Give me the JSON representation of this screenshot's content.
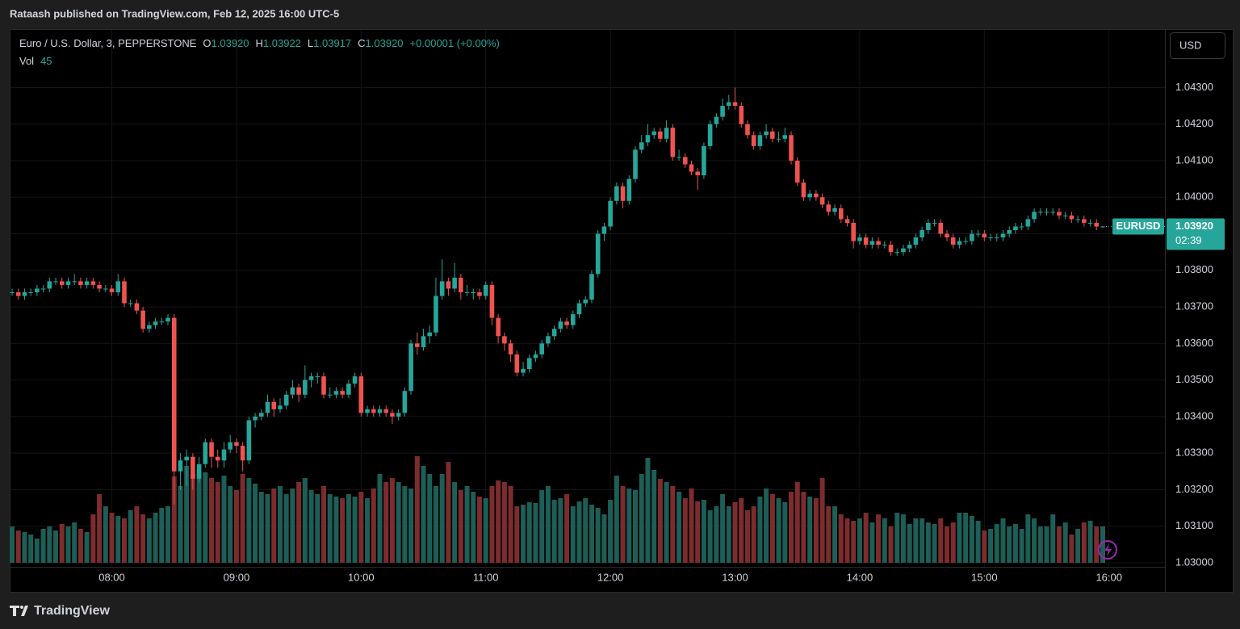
{
  "page": {
    "published": "Rataash published on TradingView.com, Feb 12, 2025 16:00 UTC-5",
    "brand": "TradingView",
    "currency": "USD",
    "header": {
      "symbol": "Euro / U.S. Dollar, 3, PEPPERSTONE",
      "ohlc": [
        {
          "key": "O",
          "value": "1.03920"
        },
        {
          "key": "H",
          "value": "1.03922"
        },
        {
          "key": "L",
          "value": "1.03917"
        },
        {
          "key": "C",
          "value": "1.03920"
        }
      ],
      "change": "+0.00001 (+0.00%)",
      "vol_label": "Vol"
    },
    "price_label": {
      "ticker": "EURUSD",
      "price": "1.03920",
      "countdown": "02:39"
    }
  },
  "chart_data": {
    "type": "candlestick",
    "up_color": "#26a69a",
    "down_color": "#ef5350",
    "volume_up_color": "#1d5e57",
    "volume_down_color": "#7d2c2e",
    "grid": true,
    "ylim": [
      1.03,
      1.0446
    ],
    "yticks": [
      {
        "value": 1.03,
        "label": "1.03000"
      },
      {
        "value": 1.031,
        "label": "1.03100"
      },
      {
        "value": 1.032,
        "label": "1.03200"
      },
      {
        "value": 1.033,
        "label": "1.03300"
      },
      {
        "value": 1.034,
        "label": "1.03400"
      },
      {
        "value": 1.035,
        "label": "1.03500"
      },
      {
        "value": 1.036,
        "label": "1.03600"
      },
      {
        "value": 1.037,
        "label": "1.03700"
      },
      {
        "value": 1.038,
        "label": "1.03800"
      },
      {
        "value": 1.039,
        "label": "1.03900"
      },
      {
        "value": 1.04,
        "label": "1.04000"
      },
      {
        "value": 1.041,
        "label": "1.04100"
      },
      {
        "value": 1.042,
        "label": "1.04200"
      },
      {
        "value": 1.043,
        "label": "1.04300"
      }
    ],
    "time_labels": [
      "08:00",
      "09:00",
      "10:00",
      "11:00",
      "12:00",
      "13:00",
      "14:00",
      "15:00",
      "16:00"
    ],
    "candles": [
      [
        1.0374,
        1.0375,
        1.0373,
        1.0374
      ],
      [
        1.0374,
        1.0375,
        1.0372,
        1.0373
      ],
      [
        1.0373,
        1.0375,
        1.0372,
        1.0374
      ],
      [
        1.0374,
        1.0375,
        1.0373,
        1.0374
      ],
      [
        1.0374,
        1.0376,
        1.0373,
        1.0375
      ],
      [
        1.0375,
        1.0376,
        1.0374,
        1.0375
      ],
      [
        1.0375,
        1.0378,
        1.0374,
        1.0377
      ],
      [
        1.0377,
        1.0378,
        1.0376,
        1.0377
      ],
      [
        1.0377,
        1.0378,
        1.0375,
        1.0376
      ],
      [
        1.0376,
        1.0378,
        1.0375,
        1.0377
      ],
      [
        1.0377,
        1.0379,
        1.0376,
        1.0377
      ],
      [
        1.0377,
        1.0378,
        1.0375,
        1.0376
      ],
      [
        1.0376,
        1.0378,
        1.0375,
        1.0377
      ],
      [
        1.0377,
        1.0378,
        1.0375,
        1.0376
      ],
      [
        1.0376,
        1.0377,
        1.0374,
        1.0375
      ],
      [
        1.0375,
        1.0376,
        1.0374,
        1.0375
      ],
      [
        1.0375,
        1.0376,
        1.0373,
        1.0374
      ],
      [
        1.0374,
        1.0379,
        1.0373,
        1.0377
      ],
      [
        1.0377,
        1.0378,
        1.037,
        1.0371
      ],
      [
        1.0371,
        1.0372,
        1.037,
        1.0371
      ],
      [
        1.0371,
        1.0372,
        1.0368,
        1.0369
      ],
      [
        1.0369,
        1.037,
        1.0363,
        1.0364
      ],
      [
        1.0364,
        1.0366,
        1.0363,
        1.0365
      ],
      [
        1.0365,
        1.0367,
        1.0364,
        1.0366
      ],
      [
        1.0366,
        1.0367,
        1.0365,
        1.0366
      ],
      [
        1.0366,
        1.0368,
        1.0365,
        1.0367
      ],
      [
        1.0367,
        1.0368,
        1.0316,
        1.0325
      ],
      [
        1.0325,
        1.033,
        1.032,
        1.0328
      ],
      [
        1.0328,
        1.0331,
        1.0321,
        1.0329
      ],
      [
        1.0329,
        1.033,
        1.032,
        1.0323
      ],
      [
        1.0323,
        1.0329,
        1.0322,
        1.0327
      ],
      [
        1.0327,
        1.0334,
        1.0326,
        1.0333
      ],
      [
        1.0333,
        1.0334,
        1.0326,
        1.0329
      ],
      [
        1.0329,
        1.0331,
        1.0326,
        1.0328
      ],
      [
        1.0328,
        1.0333,
        1.0326,
        1.0331
      ],
      [
        1.0331,
        1.0335,
        1.033,
        1.0333
      ],
      [
        1.0333,
        1.0334,
        1.033,
        1.0332
      ],
      [
        1.0332,
        1.0333,
        1.0325,
        1.0328
      ],
      [
        1.0328,
        1.034,
        1.0327,
        1.0339
      ],
      [
        1.0339,
        1.0341,
        1.0337,
        1.034
      ],
      [
        1.034,
        1.0342,
        1.0339,
        1.0341
      ],
      [
        1.0341,
        1.0346,
        1.034,
        1.0344
      ],
      [
        1.0344,
        1.0345,
        1.034,
        1.0342
      ],
      [
        1.0342,
        1.0345,
        1.0341,
        1.0343
      ],
      [
        1.0343,
        1.0347,
        1.0342,
        1.0346
      ],
      [
        1.0346,
        1.035,
        1.0345,
        1.0348
      ],
      [
        1.0348,
        1.0349,
        1.0344,
        1.0346
      ],
      [
        1.0346,
        1.0354,
        1.0345,
        1.035
      ],
      [
        1.035,
        1.0352,
        1.0348,
        1.0351
      ],
      [
        1.0351,
        1.0352,
        1.0349,
        1.0351
      ],
      [
        1.0351,
        1.0352,
        1.0345,
        1.0346
      ],
      [
        1.0346,
        1.0348,
        1.0345,
        1.0346
      ],
      [
        1.0346,
        1.0348,
        1.0345,
        1.0347
      ],
      [
        1.0347,
        1.0348,
        1.0345,
        1.0346
      ],
      [
        1.0346,
        1.035,
        1.0345,
        1.0349
      ],
      [
        1.0349,
        1.0352,
        1.0348,
        1.0351
      ],
      [
        1.0351,
        1.0352,
        1.034,
        1.0341
      ],
      [
        1.0341,
        1.0343,
        1.034,
        1.0342
      ],
      [
        1.0342,
        1.0343,
        1.034,
        1.0341
      ],
      [
        1.0341,
        1.0343,
        1.034,
        1.0342
      ],
      [
        1.0342,
        1.0343,
        1.034,
        1.0341
      ],
      [
        1.0341,
        1.0342,
        1.0338,
        1.034
      ],
      [
        1.034,
        1.0342,
        1.0339,
        1.0341
      ],
      [
        1.0341,
        1.0348,
        1.034,
        1.0347
      ],
      [
        1.0347,
        1.0361,
        1.0346,
        1.036
      ],
      [
        1.036,
        1.0363,
        1.0357,
        1.0359
      ],
      [
        1.0359,
        1.0364,
        1.0358,
        1.0362
      ],
      [
        1.0362,
        1.0365,
        1.036,
        1.0363
      ],
      [
        1.0363,
        1.0378,
        1.0362,
        1.0373
      ],
      [
        1.0373,
        1.0383,
        1.0372,
        1.0377
      ],
      [
        1.0377,
        1.0378,
        1.0373,
        1.0375
      ],
      [
        1.0375,
        1.0382,
        1.0374,
        1.0378
      ],
      [
        1.0378,
        1.0379,
        1.0372,
        1.0374
      ],
      [
        1.0374,
        1.0376,
        1.0373,
        1.0374
      ],
      [
        1.0374,
        1.0375,
        1.0372,
        1.0374
      ],
      [
        1.0374,
        1.0375,
        1.0372,
        1.0373
      ],
      [
        1.0373,
        1.0377,
        1.0372,
        1.0376
      ],
      [
        1.0376,
        1.0377,
        1.0365,
        1.0367
      ],
      [
        1.0367,
        1.0368,
        1.036,
        1.0362
      ],
      [
        1.0362,
        1.0363,
        1.0358,
        1.036
      ],
      [
        1.036,
        1.0361,
        1.0355,
        1.0357
      ],
      [
        1.0357,
        1.0358,
        1.0351,
        1.0352
      ],
      [
        1.0352,
        1.0355,
        1.0351,
        1.0353
      ],
      [
        1.0353,
        1.0357,
        1.0352,
        1.0356
      ],
      [
        1.0356,
        1.0358,
        1.0355,
        1.0357
      ],
      [
        1.0357,
        1.0361,
        1.0356,
        1.036
      ],
      [
        1.036,
        1.0363,
        1.0359,
        1.0362
      ],
      [
        1.0362,
        1.0365,
        1.0361,
        1.0364
      ],
      [
        1.0364,
        1.0367,
        1.0363,
        1.0366
      ],
      [
        1.0366,
        1.0367,
        1.0364,
        1.0365
      ],
      [
        1.0365,
        1.0369,
        1.0364,
        1.0368
      ],
      [
        1.0368,
        1.0372,
        1.0367,
        1.0371
      ],
      [
        1.0371,
        1.0373,
        1.037,
        1.0372
      ],
      [
        1.0372,
        1.038,
        1.0371,
        1.0379
      ],
      [
        1.0379,
        1.0391,
        1.0378,
        1.039
      ],
      [
        1.039,
        1.0393,
        1.0388,
        1.0392
      ],
      [
        1.0392,
        1.04,
        1.0391,
        1.0399
      ],
      [
        1.0399,
        1.0404,
        1.0398,
        1.0403
      ],
      [
        1.0403,
        1.0404,
        1.0397,
        1.0399
      ],
      [
        1.0399,
        1.0406,
        1.0398,
        1.0405
      ],
      [
        1.0405,
        1.0414,
        1.0404,
        1.0413
      ],
      [
        1.0413,
        1.0417,
        1.0412,
        1.0415
      ],
      [
        1.0415,
        1.042,
        1.0414,
        1.0417
      ],
      [
        1.0417,
        1.0419,
        1.0416,
        1.0418
      ],
      [
        1.0418,
        1.0419,
        1.0415,
        1.0416
      ],
      [
        1.0416,
        1.0421,
        1.0415,
        1.0419
      ],
      [
        1.0419,
        1.042,
        1.041,
        1.0411
      ],
      [
        1.0411,
        1.0413,
        1.041,
        1.0411
      ],
      [
        1.0411,
        1.0412,
        1.0408,
        1.0409
      ],
      [
        1.0409,
        1.041,
        1.0406,
        1.0407
      ],
      [
        1.0407,
        1.0408,
        1.0402,
        1.0406
      ],
      [
        1.0406,
        1.0415,
        1.0405,
        1.0414
      ],
      [
        1.0414,
        1.0421,
        1.0413,
        1.042
      ],
      [
        1.042,
        1.0423,
        1.0419,
        1.0422
      ],
      [
        1.0422,
        1.0427,
        1.0421,
        1.0425
      ],
      [
        1.0425,
        1.0428,
        1.0424,
        1.0426
      ],
      [
        1.0426,
        1.043,
        1.0424,
        1.0425
      ],
      [
        1.0425,
        1.0426,
        1.0419,
        1.042
      ],
      [
        1.042,
        1.0421,
        1.0416,
        1.0417
      ],
      [
        1.0417,
        1.0418,
        1.0413,
        1.0414
      ],
      [
        1.0414,
        1.0418,
        1.0413,
        1.0417
      ],
      [
        1.0417,
        1.042,
        1.0416,
        1.0418
      ],
      [
        1.0418,
        1.0419,
        1.0415,
        1.0416
      ],
      [
        1.0416,
        1.0418,
        1.0415,
        1.0416
      ],
      [
        1.0416,
        1.0419,
        1.0415,
        1.0417
      ],
      [
        1.0417,
        1.0418,
        1.0409,
        1.041
      ],
      [
        1.041,
        1.0411,
        1.0403,
        1.0404
      ],
      [
        1.0404,
        1.0405,
        1.0399,
        1.04
      ],
      [
        1.04,
        1.0402,
        1.0399,
        1.0401
      ],
      [
        1.0401,
        1.0402,
        1.0399,
        1.04
      ],
      [
        1.04,
        1.0401,
        1.0397,
        1.0398
      ],
      [
        1.0398,
        1.0399,
        1.0395,
        1.0396
      ],
      [
        1.0396,
        1.0398,
        1.0395,
        1.0397
      ],
      [
        1.0397,
        1.0398,
        1.0393,
        1.0394
      ],
      [
        1.0394,
        1.0395,
        1.0392,
        1.0393
      ],
      [
        1.0393,
        1.0394,
        1.0386,
        1.0388
      ],
      [
        1.0388,
        1.039,
        1.0387,
        1.0389
      ],
      [
        1.0389,
        1.039,
        1.0386,
        1.0387
      ],
      [
        1.0387,
        1.0389,
        1.0386,
        1.0388
      ],
      [
        1.0388,
        1.0389,
        1.0386,
        1.0387
      ],
      [
        1.0387,
        1.0388,
        1.0386,
        1.0387
      ],
      [
        1.0387,
        1.0388,
        1.0384,
        1.0385
      ],
      [
        1.0385,
        1.0386,
        1.0384,
        1.0385
      ],
      [
        1.0385,
        1.0387,
        1.0384,
        1.0386
      ],
      [
        1.0386,
        1.0388,
        1.0385,
        1.0387
      ],
      [
        1.0387,
        1.039,
        1.0386,
        1.0389
      ],
      [
        1.0389,
        1.0392,
        1.0388,
        1.0391
      ],
      [
        1.0391,
        1.0394,
        1.039,
        1.0393
      ],
      [
        1.0393,
        1.0394,
        1.0392,
        1.0393
      ],
      [
        1.0393,
        1.0394,
        1.0389,
        1.039
      ],
      [
        1.039,
        1.0391,
        1.0388,
        1.0389
      ],
      [
        1.0389,
        1.039,
        1.0386,
        1.0387
      ],
      [
        1.0387,
        1.0389,
        1.0386,
        1.0388
      ],
      [
        1.0388,
        1.0389,
        1.0387,
        1.0388
      ],
      [
        1.0388,
        1.0391,
        1.0387,
        1.039
      ],
      [
        1.039,
        1.0391,
        1.0389,
        1.039
      ],
      [
        1.039,
        1.0391,
        1.0388,
        1.0389
      ],
      [
        1.0389,
        1.039,
        1.0388,
        1.0389
      ],
      [
        1.0389,
        1.039,
        1.0388,
        1.0389
      ],
      [
        1.0389,
        1.0391,
        1.0388,
        1.039
      ],
      [
        1.039,
        1.0392,
        1.0389,
        1.0391
      ],
      [
        1.0391,
        1.0393,
        1.039,
        1.0392
      ],
      [
        1.0392,
        1.0393,
        1.0391,
        1.0392
      ],
      [
        1.0392,
        1.0395,
        1.0391,
        1.0394
      ],
      [
        1.0394,
        1.0397,
        1.0393,
        1.0396
      ],
      [
        1.0396,
        1.0397,
        1.0395,
        1.0396
      ],
      [
        1.0396,
        1.0397,
        1.0395,
        1.0396
      ],
      [
        1.0396,
        1.0397,
        1.0395,
        1.0396
      ],
      [
        1.0396,
        1.0397,
        1.0394,
        1.0395
      ],
      [
        1.0395,
        1.0396,
        1.0394,
        1.0395
      ],
      [
        1.0395,
        1.0396,
        1.0393,
        1.0394
      ],
      [
        1.0394,
        1.0395,
        1.0393,
        1.0394
      ],
      [
        1.0394,
        1.0395,
        1.0392,
        1.0393
      ],
      [
        1.0393,
        1.0394,
        1.0392,
        1.0393
      ],
      [
        1.0393,
        1.0394,
        1.0391,
        1.0392
      ],
      [
        1.0392,
        1.03922,
        1.03917,
        1.0392
      ]
    ],
    "volumes": [
      45,
      40,
      38,
      35,
      30,
      42,
      45,
      40,
      48,
      45,
      50,
      42,
      38,
      60,
      85,
      70,
      62,
      58,
      55,
      65,
      70,
      60,
      55,
      62,
      68,
      70,
      107,
      95,
      120,
      110,
      115,
      112,
      105,
      100,
      108,
      95,
      90,
      110,
      105,
      98,
      88,
      85,
      92,
      95,
      85,
      92,
      100,
      105,
      90,
      85,
      95,
      85,
      82,
      80,
      85,
      82,
      88,
      80,
      92,
      110,
      100,
      105,
      100,
      95,
      92,
      132,
      120,
      110,
      95,
      110,
      125,
      100,
      90,
      95,
      88,
      82,
      80,
      95,
      102,
      100,
      95,
      70,
      72,
      75,
      74,
      90,
      95,
      78,
      80,
      85,
      70,
      76,
      80,
      72,
      68,
      60,
      78,
      108,
      95,
      92,
      90,
      110,
      130,
      115,
      104,
      100,
      95,
      88,
      80,
      92,
      76,
      78,
      65,
      70,
      85,
      70,
      75,
      80,
      65,
      70,
      82,
      92,
      85,
      80,
      75,
      88,
      100,
      88,
      82,
      80,
      105,
      70,
      70,
      60,
      55,
      52,
      55,
      62,
      50,
      60,
      55,
      45,
      62,
      60,
      48,
      55,
      55,
      50,
      48,
      55,
      45,
      50,
      62,
      62,
      58,
      52,
      40,
      42,
      48,
      55,
      45,
      48,
      42,
      60,
      55,
      45,
      45,
      60,
      45,
      50,
      35,
      42,
      50,
      52,
      45,
      45
    ]
  }
}
